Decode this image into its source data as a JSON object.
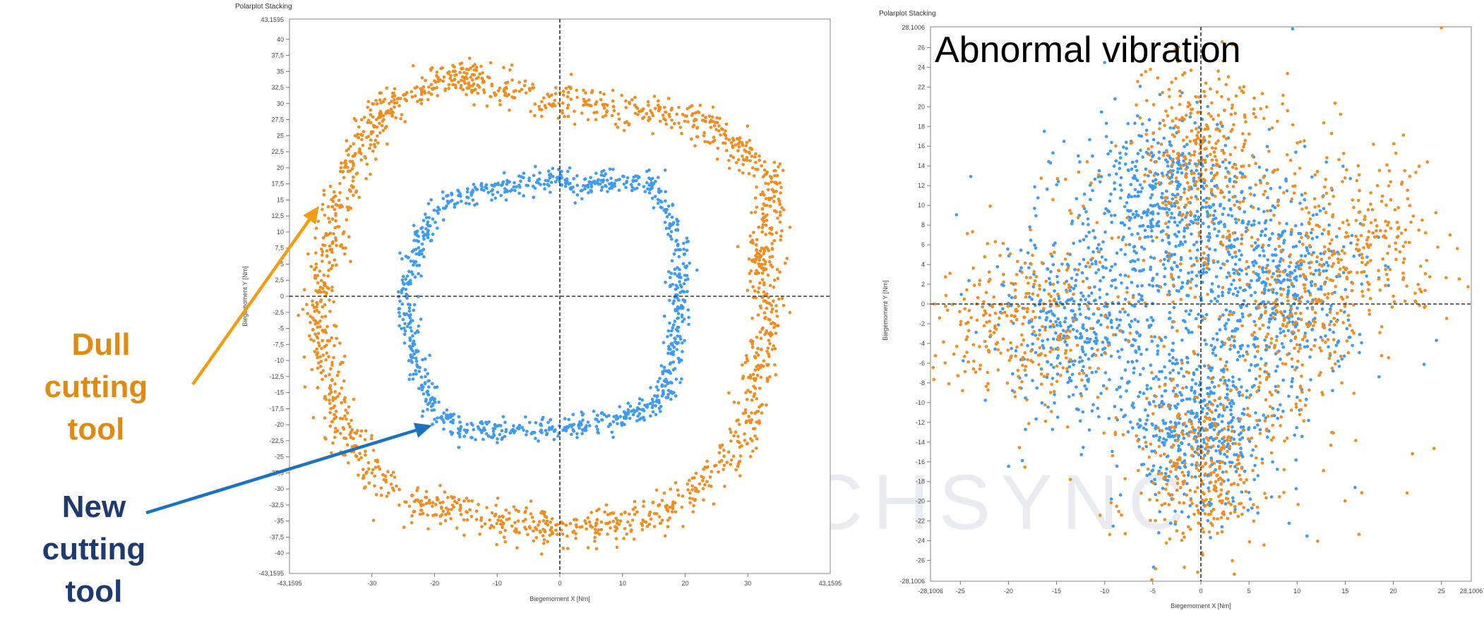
{
  "colors": {
    "dull": "#F28C1E",
    "new": "#3D9BF2",
    "dull_label": "#E08A12",
    "new_label": "#1F3A70",
    "dull_arrow": "#F39C12",
    "new_arrow": "#1A73C0",
    "frame": "#9a9a9a",
    "crosshair": "#333333"
  },
  "labels": {
    "dull": [
      "Dull",
      "cutting",
      "tool"
    ],
    "new": [
      "New",
      "cutting",
      "tool"
    ]
  },
  "watermark": "MACHSYNC",
  "chart_data": [
    {
      "type": "scatter",
      "title": "Polarplot Stacking",
      "xlabel": "Biegemoment X [Nm]",
      "ylabel": "Biegemoment Y [Nm]",
      "xlim": [
        -43.1595,
        43.1595
      ],
      "ylim": [
        -43.1595,
        43.1595
      ],
      "x_ticks": [
        -30,
        -20,
        -10,
        0,
        10,
        20,
        30
      ],
      "x_tick_labels": [
        "-30",
        "-20",
        "-10",
        "0",
        "10",
        "20",
        "30"
      ],
      "x_edge_labels": [
        "-43,1595",
        "43,1595"
      ],
      "y_ticks": [
        40,
        37.5,
        35,
        32.5,
        30,
        27.5,
        25,
        22.5,
        20,
        17.5,
        15,
        12.5,
        10,
        7.5,
        5,
        2.5,
        0,
        -2.5,
        -5,
        -7.5,
        -10,
        -12.5,
        -15,
        -17.5,
        -20,
        -22.5,
        -25,
        -27.5,
        -30,
        -32.5,
        -35,
        -37.5,
        -40
      ],
      "y_tick_labels": [
        "40",
        "37,5",
        "35",
        "32,5",
        "30",
        "27,5",
        "25",
        "22,5",
        "20",
        "17,5",
        "15",
        "12,5",
        "10",
        "7,5",
        "5",
        "2,5",
        "0",
        "-2,5",
        "-5",
        "-7,5",
        "-10",
        "-12,5",
        "-15",
        "-17,5",
        "-20",
        "-22,5",
        "-25",
        "-27,5",
        "-30",
        "-32,5",
        "-35",
        "-37,5",
        "-40"
      ],
      "y_edge_labels": [
        "43,1595",
        "-43,1595"
      ],
      "grid": false,
      "crosshair_at_origin": true,
      "series": [
        {
          "color_key": "dull",
          "points": [
            [
              33.5,
              0
            ],
            [
              32.2,
              6.2
            ],
            [
              33.8,
              12.0
            ],
            [
              33.0,
              18.5
            ],
            [
              28.0,
              24.0
            ],
            [
              22.0,
              27.5
            ],
            [
              15.0,
              28.5
            ],
            [
              8.0,
              29.2
            ],
            [
              1.0,
              30.5
            ],
            [
              -6.0,
              31.5
            ],
            [
              -12.0,
              33.0
            ],
            [
              -16.0,
              34.3
            ],
            [
              -21.0,
              33.0
            ],
            [
              -26.5,
              30.0
            ],
            [
              -30.5,
              26.0
            ],
            [
              -33.0,
              21.0
            ],
            [
              -35.0,
              14.5
            ],
            [
              -36.5,
              8.0
            ],
            [
              -38.0,
              2.0
            ],
            [
              -38.5,
              -4.0
            ],
            [
              -37.0,
              -11.0
            ],
            [
              -35.5,
              -18.0
            ],
            [
              -32.5,
              -24.0
            ],
            [
              -28.5,
              -29.0
            ],
            [
              -23.0,
              -32.0
            ],
            [
              -16.0,
              -33.5
            ],
            [
              -8.5,
              -35.0
            ],
            [
              -2.0,
              -36.5
            ],
            [
              5.0,
              -36.0
            ],
            [
              11.0,
              -35.0
            ],
            [
              17.0,
              -33.0
            ],
            [
              22.5,
              -30.0
            ],
            [
              27.5,
              -25.0
            ],
            [
              30.5,
              -19.0
            ],
            [
              31.5,
              -12.0
            ],
            [
              33.0,
              -6.0
            ]
          ],
          "spread": 1.9,
          "count": 1700
        },
        {
          "color_key": "new",
          "points": [
            [
              19.0,
              0
            ],
            [
              19.2,
              5.5
            ],
            [
              18.5,
              11.0
            ],
            [
              14.5,
              17.0
            ],
            [
              8.5,
              18.0
            ],
            [
              3.5,
              17.0
            ],
            [
              -0.5,
              18.5
            ],
            [
              -5.5,
              17.5
            ],
            [
              -11.0,
              16.5
            ],
            [
              -17.5,
              15.5
            ],
            [
              -21.5,
              11.0
            ],
            [
              -23.5,
              5.0
            ],
            [
              -24.5,
              -1.0
            ],
            [
              -23.5,
              -7.0
            ],
            [
              -22.0,
              -12.5
            ],
            [
              -20.5,
              -17.0
            ],
            [
              -16.0,
              -20.5
            ],
            [
              -10.5,
              -21.0
            ],
            [
              -4.5,
              -20.5
            ],
            [
              1.0,
              -20.5
            ],
            [
              6.5,
              -19.5
            ],
            [
              12.0,
              -18.5
            ],
            [
              16.0,
              -16.0
            ],
            [
              18.0,
              -11.5
            ],
            [
              18.5,
              -5.5
            ]
          ],
          "spread": 1.2,
          "count": 1000
        }
      ]
    },
    {
      "type": "scatter",
      "title": "Polarplot Stacking",
      "annotation": "Abnormal vibration",
      "xlabel": "Biegemoment X [Nm]",
      "ylabel": "Biegemoment Y [Nm]",
      "xlim": [
        -28.1006,
        28.1006
      ],
      "ylim": [
        -28.1006,
        28.1006
      ],
      "x_ticks": [
        -25,
        -20,
        -15,
        -10,
        -5,
        0,
        5,
        10,
        15,
        20,
        25
      ],
      "x_tick_labels": [
        "-25",
        "-20",
        "-15",
        "-10",
        "-5",
        "0",
        "5",
        "10",
        "15",
        "20",
        "25"
      ],
      "x_edge_labels": [
        "-28,1006",
        "28,1006"
      ],
      "y_ticks": [
        26,
        24,
        22,
        20,
        18,
        16,
        14,
        12,
        10,
        8,
        6,
        4,
        2,
        0,
        -2,
        -4,
        -6,
        -8,
        -10,
        -12,
        -14,
        -16,
        -18,
        -20,
        -22,
        -24,
        -26
      ],
      "y_tick_labels": [
        "26",
        "24",
        "22",
        "20",
        "18",
        "16",
        "14",
        "12",
        "10",
        "8",
        "6",
        "4",
        "2",
        "0",
        "-2",
        "-4",
        "-6",
        "-8",
        "-10",
        "-12",
        "-14",
        "-16",
        "-18",
        "-20",
        "-22",
        "-24",
        "-26"
      ],
      "y_edge_labels": [
        "28,1006",
        "-28,1006"
      ],
      "grid": false,
      "crosshair_at_origin": true,
      "series": [
        {
          "color_key": "new",
          "clusters": [
            {
              "cx": -3,
              "cy": 11,
              "sx": 4.5,
              "sy": 4.0,
              "n": 450
            },
            {
              "cx": 8,
              "cy": 2,
              "sx": 4.5,
              "sy": 4.5,
              "n": 420
            },
            {
              "cx": -12,
              "cy": -2,
              "sx": 4.5,
              "sy": 4.5,
              "n": 380
            },
            {
              "cx": 0,
              "cy": -13,
              "sx": 3.5,
              "sy": 4.0,
              "n": 420
            },
            {
              "cx": -2,
              "cy": 0,
              "sx": 9.0,
              "sy": 9.0,
              "n": 350
            }
          ]
        },
        {
          "color_key": "dull",
          "clusters": [
            {
              "cx": 0,
              "cy": 15,
              "sx": 3.5,
              "sy": 5.0,
              "n": 300
            },
            {
              "cx": 16,
              "cy": 6,
              "sx": 4.5,
              "sy": 4.5,
              "n": 260
            },
            {
              "cx": -19,
              "cy": -2,
              "sx": 5.0,
              "sy": 4.0,
              "n": 260
            },
            {
              "cx": 0,
              "cy": -17,
              "sx": 3.5,
              "sy": 4.0,
              "n": 280
            },
            {
              "cx": 10,
              "cy": -3,
              "sx": 3.0,
              "sy": 4.0,
              "n": 160
            },
            {
              "cx": 0,
              "cy": 0,
              "sx": 11.0,
              "sy": 11.0,
              "n": 280
            }
          ],
          "outliers": [
            [
              25.0,
              28.0
            ],
            [
              23.0,
              8.5
            ]
          ]
        }
      ]
    }
  ]
}
